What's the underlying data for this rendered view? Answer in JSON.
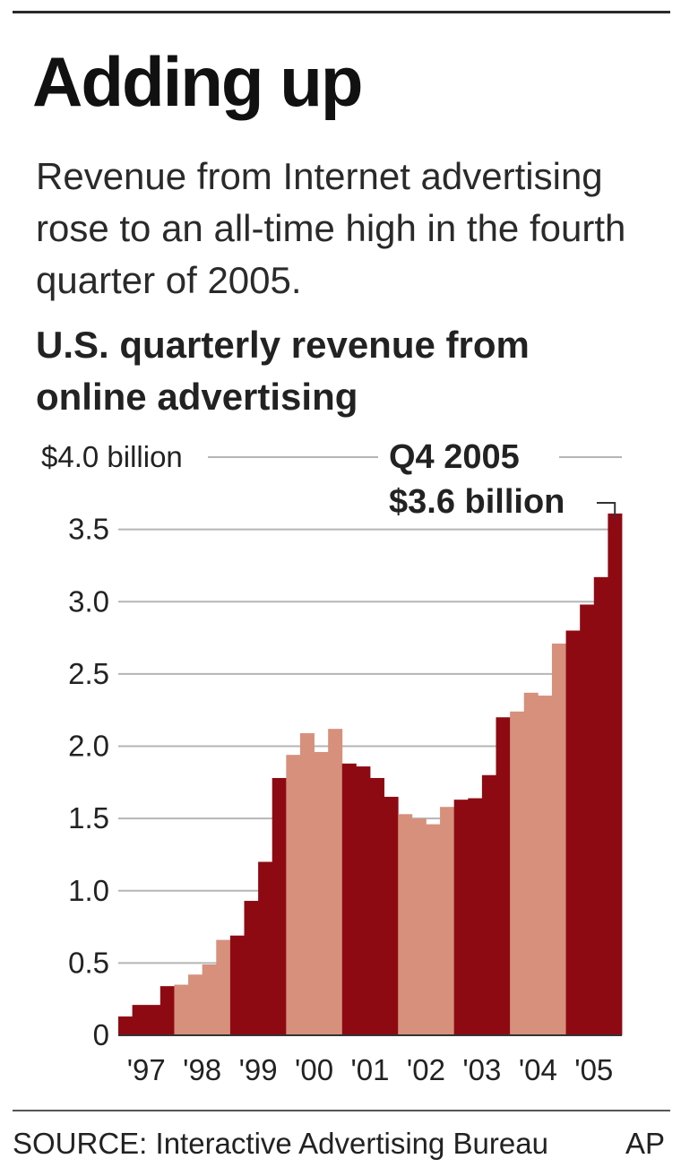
{
  "header": {
    "title": "Adding up",
    "subtitle": "Revenue from Internet advertising rose to an all-time high in the fourth quarter of 2005."
  },
  "chart_data": {
    "type": "bar",
    "title": "U.S. quarterly revenue from online advertising",
    "ylim": [
      0,
      4.0
    ],
    "y_ticks": [
      "0",
      "0.5",
      "1.0",
      "1.5",
      "2.0",
      "2.5",
      "3.0",
      "3.5",
      "$4.0 billion"
    ],
    "y_tick_values": [
      0,
      0.5,
      1.0,
      1.5,
      2.0,
      2.5,
      3.0,
      3.5,
      4.0
    ],
    "grid": true,
    "year_labels": [
      "'97",
      "'98",
      "'99",
      "'00",
      "'01",
      "'02",
      "'03",
      "'04",
      "'05"
    ],
    "categories": [
      "Q1 1997",
      "Q2 1997",
      "Q3 1997",
      "Q4 1997",
      "Q1 1998",
      "Q2 1998",
      "Q3 1998",
      "Q4 1998",
      "Q1 1999",
      "Q2 1999",
      "Q3 1999",
      "Q4 1999",
      "Q1 2000",
      "Q2 2000",
      "Q3 2000",
      "Q4 2000",
      "Q1 2001",
      "Q2 2001",
      "Q3 2001",
      "Q4 2001",
      "Q1 2002",
      "Q2 2002",
      "Q3 2002",
      "Q4 2002",
      "Q1 2003",
      "Q2 2003",
      "Q3 2003",
      "Q4 2003",
      "Q1 2004",
      "Q2 2004",
      "Q3 2004",
      "Q4 2004",
      "Q1 2005",
      "Q2 2005",
      "Q3 2005",
      "Q4 2005"
    ],
    "values": [
      0.13,
      0.21,
      0.21,
      0.34,
      0.35,
      0.42,
      0.49,
      0.66,
      0.69,
      0.93,
      1.2,
      1.78,
      1.94,
      2.09,
      1.96,
      2.12,
      1.88,
      1.86,
      1.78,
      1.65,
      1.53,
      1.5,
      1.46,
      1.58,
      1.63,
      1.64,
      1.8,
      2.2,
      2.24,
      2.37,
      2.35,
      2.71,
      2.8,
      2.98,
      3.17,
      3.61
    ],
    "colors": {
      "dark": "#8e0a13",
      "light": "#d6907c",
      "grid": "#b5b5b5",
      "axis": "#333333"
    },
    "annotation": {
      "line1": "Q4 2005",
      "line2": "$3.6 billion"
    }
  },
  "footer": {
    "source": "SOURCE: Interactive Advertising Bureau",
    "credit": "AP"
  }
}
